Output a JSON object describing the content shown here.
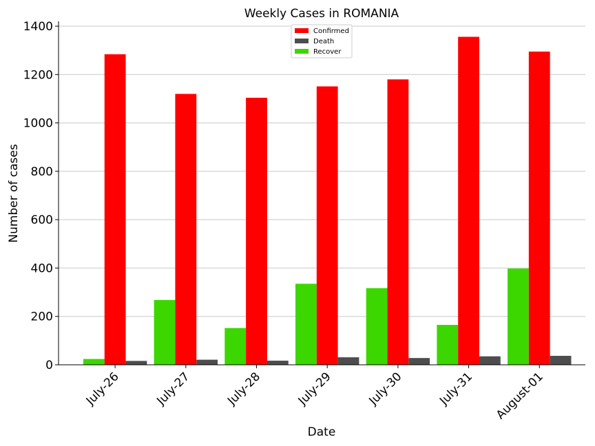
{
  "chart_data": {
    "type": "bar",
    "title": "Weekly Cases in ROMANIA",
    "xlabel": "Date",
    "ylabel": "Number of cases",
    "ylim": [
      0,
      1420
    ],
    "yticks": [
      0,
      200,
      400,
      600,
      800,
      1000,
      1200,
      1400
    ],
    "grid": "horizontal",
    "legend_position": "top-center",
    "categories": [
      "July-26",
      "July-27",
      "July-28",
      "July-29",
      "July-30",
      "July-31",
      "August-01"
    ],
    "series": [
      {
        "name": "Confirmed",
        "color": "#ff0000",
        "values": [
          1284,
          1120,
          1104,
          1151,
          1180,
          1356,
          1295
        ]
      },
      {
        "name": "Death",
        "color": "#4d4d4d",
        "values": [
          16,
          21,
          17,
          31,
          28,
          35,
          37
        ]
      },
      {
        "name": "Recover",
        "color": "#3cd700",
        "values": [
          24,
          268,
          152,
          335,
          317,
          165,
          398
        ]
      }
    ]
  }
}
